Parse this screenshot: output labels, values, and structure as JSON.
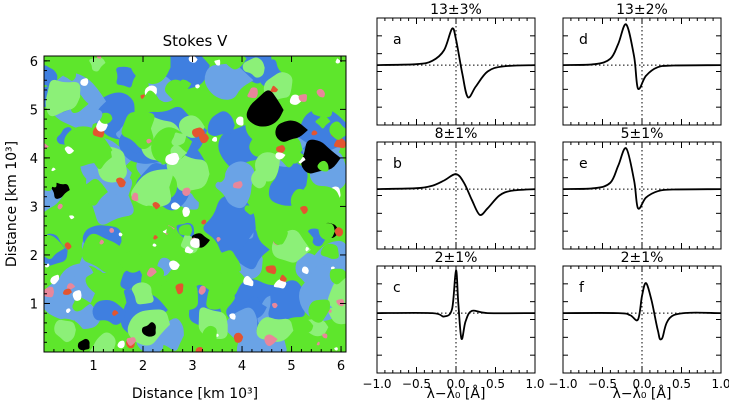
{
  "map": {
    "title": "Stokes V",
    "xlabel": "Distance [km 10³]",
    "ylabel": "Distance [km 10³]",
    "xticks": [
      "1",
      "2",
      "3",
      "4",
      "5",
      "6"
    ],
    "yticks": [
      "1",
      "2",
      "3",
      "4",
      "5",
      "6"
    ],
    "xrange": [
      0,
      6.1
    ],
    "yrange": [
      0,
      6.1
    ],
    "palette": [
      "#5ee62c",
      "#8cf078",
      "#6aa3e6",
      "#3f7fe0",
      "#ffffff",
      "#000000",
      "#e35530",
      "#e8879b"
    ]
  },
  "profiles": {
    "xlabel": "λ−λ₀ [Å]",
    "xticks": [
      "−1.0",
      "−0.5",
      "0.0",
      "0.5",
      "1.0"
    ],
    "xrange": [
      -1.0,
      1.0
    ]
  },
  "chart_data": [
    {
      "type": "heatmap",
      "title": "Stokes V",
      "xlabel": "Distance [km 10³]",
      "ylabel": "Distance [km 10³]",
      "xlim": [
        0,
        6.1
      ],
      "ylim": [
        0,
        6.1
      ],
      "grid": false
    },
    {
      "type": "line",
      "panel": "a",
      "title": "13±3%",
      "xlim": [
        -1,
        1
      ],
      "x": [
        -1.0,
        -0.5,
        -0.3,
        -0.15,
        -0.05,
        0.0,
        0.08,
        0.15,
        0.25,
        0.4,
        0.6,
        1.0
      ],
      "y": [
        0.0,
        0.02,
        0.1,
        0.35,
        0.85,
        0.6,
        -0.2,
        -0.75,
        -0.5,
        -0.15,
        -0.03,
        0.0
      ]
    },
    {
      "type": "line",
      "panel": "b",
      "title": "8±1%",
      "xlim": [
        -1,
        1
      ],
      "x": [
        -1.0,
        -0.5,
        -0.3,
        -0.15,
        0.0,
        0.1,
        0.2,
        0.3,
        0.4,
        0.55,
        0.7,
        1.0
      ],
      "y": [
        0.0,
        0.02,
        0.08,
        0.2,
        0.35,
        0.15,
        -0.25,
        -0.6,
        -0.45,
        -0.15,
        -0.04,
        0.0
      ]
    },
    {
      "type": "line",
      "panel": "c",
      "title": "2±1%",
      "xlim": [
        -1,
        1
      ],
      "x": [
        -1.0,
        -0.3,
        -0.15,
        -0.05,
        0.0,
        0.03,
        0.07,
        0.12,
        0.2,
        0.4,
        1.0
      ],
      "y": [
        0.0,
        0.0,
        -0.08,
        0.1,
        1.0,
        0.2,
        -0.6,
        -0.2,
        0.05,
        0.0,
        0.0
      ]
    },
    {
      "type": "line",
      "panel": "d",
      "title": "13±2%",
      "xlim": [
        -1,
        1
      ],
      "x": [
        -1.0,
        -0.6,
        -0.4,
        -0.3,
        -0.2,
        -0.1,
        -0.05,
        0.05,
        0.2,
        0.4,
        1.0
      ],
      "y": [
        0.0,
        0.02,
        0.15,
        0.5,
        0.95,
        0.2,
        -0.55,
        -0.25,
        -0.05,
        -0.01,
        0.0
      ]
    },
    {
      "type": "line",
      "panel": "e",
      "title": "5±1%",
      "xlim": [
        -1,
        1
      ],
      "x": [
        -1.0,
        -0.6,
        -0.4,
        -0.3,
        -0.2,
        -0.1,
        -0.05,
        0.05,
        0.2,
        0.4,
        1.0
      ],
      "y": [
        0.0,
        0.02,
        0.15,
        0.55,
        0.95,
        0.2,
        -0.45,
        -0.2,
        -0.05,
        -0.01,
        0.0
      ]
    },
    {
      "type": "line",
      "panel": "f",
      "title": "2±1%",
      "xlim": [
        -1,
        1
      ],
      "x": [
        -1.0,
        -0.3,
        -0.15,
        -0.05,
        0.0,
        0.05,
        0.12,
        0.2,
        0.25,
        0.4,
        1.0
      ],
      "y": [
        0.0,
        0.0,
        -0.05,
        -0.15,
        0.4,
        0.7,
        0.3,
        -0.4,
        -0.6,
        -0.05,
        0.0
      ]
    }
  ]
}
